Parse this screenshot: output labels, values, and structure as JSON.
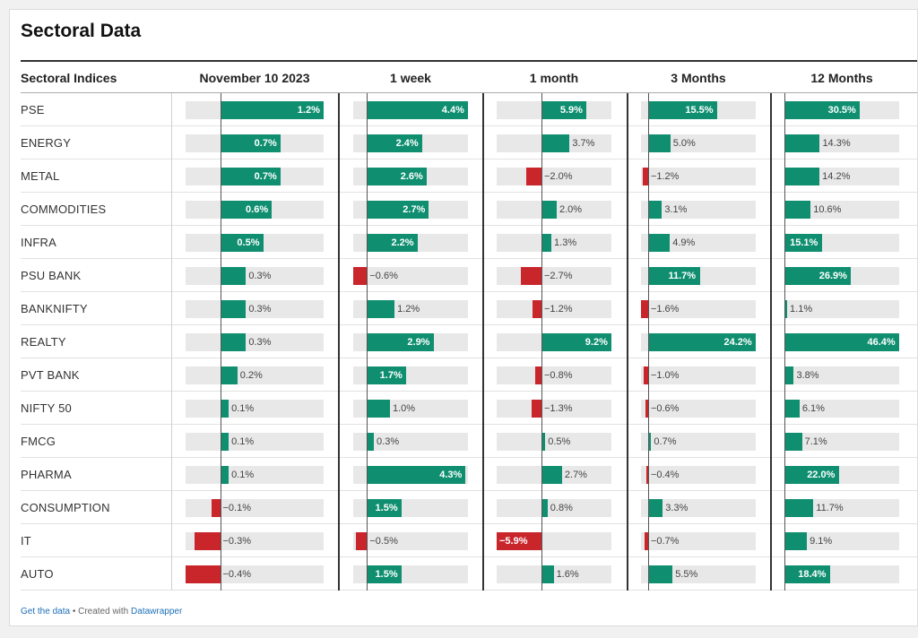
{
  "title": "Sectoral Data",
  "colors": {
    "positive": "#0f8f70",
    "negative": "#c9262c",
    "track": "#e8e8e8"
  },
  "chart_data": {
    "type": "table",
    "row_header": "Sectoral Indices",
    "columns": [
      "November 10 2023",
      "1 week",
      "1 month",
      "3 Months",
      "12 Months"
    ],
    "rows": [
      {
        "name": "PSE",
        "values": [
          1.2,
          4.4,
          5.9,
          15.5,
          30.5
        ]
      },
      {
        "name": "ENERGY",
        "values": [
          0.7,
          2.4,
          3.7,
          5.0,
          14.3
        ]
      },
      {
        "name": "METAL",
        "values": [
          0.7,
          2.6,
          -2.0,
          -1.2,
          14.2
        ]
      },
      {
        "name": "COMMODITIES",
        "values": [
          0.6,
          2.7,
          2.0,
          3.1,
          10.6
        ]
      },
      {
        "name": "INFRA",
        "values": [
          0.5,
          2.2,
          1.3,
          4.9,
          15.1
        ]
      },
      {
        "name": "PSU BANK",
        "values": [
          0.3,
          -0.6,
          -2.7,
          11.7,
          26.9
        ]
      },
      {
        "name": "BANKNIFTY",
        "values": [
          0.3,
          1.2,
          -1.2,
          -1.6,
          1.1
        ]
      },
      {
        "name": "REALTY",
        "values": [
          0.3,
          2.9,
          9.2,
          24.2,
          46.4
        ]
      },
      {
        "name": "PVT BANK",
        "values": [
          0.2,
          1.7,
          -0.8,
          -1.0,
          3.8
        ]
      },
      {
        "name": "NIFTY 50",
        "values": [
          0.1,
          1.0,
          -1.3,
          -0.6,
          6.1
        ]
      },
      {
        "name": "FMCG",
        "values": [
          0.1,
          0.3,
          0.5,
          0.7,
          7.1
        ]
      },
      {
        "name": "PHARMA",
        "values": [
          0.1,
          4.3,
          2.7,
          -0.4,
          22.0
        ]
      },
      {
        "name": "CONSUMPTION",
        "values": [
          -0.1,
          1.5,
          0.8,
          3.3,
          11.7
        ]
      },
      {
        "name": "IT",
        "values": [
          -0.3,
          -0.5,
          -5.9,
          -0.7,
          9.1
        ]
      },
      {
        "name": "AUTO",
        "values": [
          -0.4,
          1.5,
          1.6,
          5.5,
          18.4
        ]
      }
    ],
    "column_ranges": [
      [
        -0.4,
        1.2
      ],
      [
        -0.6,
        4.4
      ],
      [
        -5.9,
        9.2
      ],
      [
        -1.6,
        24.2
      ],
      [
        0,
        46.4
      ]
    ]
  },
  "footer": {
    "get_data": "Get the data",
    "sep": " • Created with ",
    "tool": "Datawrapper"
  }
}
